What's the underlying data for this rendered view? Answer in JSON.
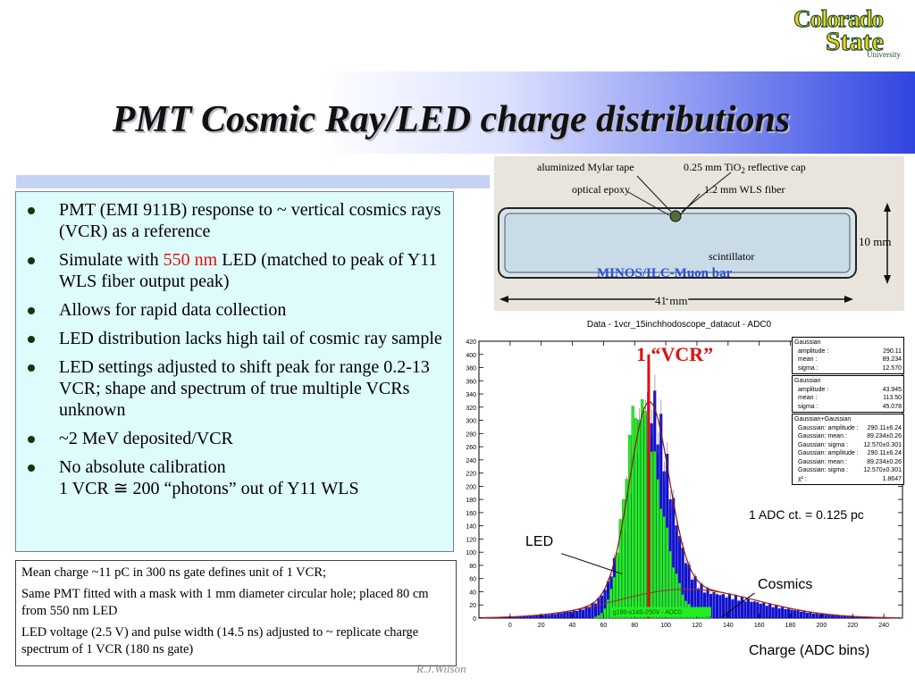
{
  "slide": {
    "title": "PMT Cosmic Ray/LED charge distributions",
    "logo": {
      "line1": "Colorado",
      "line2": "State",
      "line3": "University"
    },
    "footer": "R.J.Wilson"
  },
  "bullets": [
    {
      "text": "PMT (EMI 911B) response to ~ vertical cosmics rays (VCR) as a reference"
    },
    {
      "pre": "Simulate with ",
      "highlight": "550 nm",
      "post": " LED (matched to peak of Y11 WLS fiber output peak)"
    },
    {
      "text": "Allows for rapid data collection"
    },
    {
      "text": "LED distribution lacks high tail of cosmic ray sample"
    },
    {
      "text": "LED settings adjusted to shift peak for range 0.2-13 VCR; shape and spectrum of true multiple VCRs unknown"
    },
    {
      "text": "~2 MeV deposited/VCR"
    },
    {
      "line1": "No absolute calibration",
      "line2": "1 VCR ≅ 200 “photons” out of Y11 WLS"
    }
  ],
  "notes": [
    "Mean charge ~11 pC in 300 ns gate defines unit of 1 VCR;",
    "Same PMT fitted with a mask with 1 mm diameter circular hole; placed 80 cm from 550 nm LED",
    "LED voltage (2.5 V) and pulse width (14.5 ns) adjusted to ~ replicate charge spectrum of 1 VCR (180 ns gate)"
  ],
  "diagram": {
    "labels": {
      "mylar": "aluminized Mylar tape",
      "tio2": "0.25 mm TiO",
      "tio2_sub": "2",
      "cap": " reflective cap",
      "epoxy": "optical epoxy",
      "fiber": "1.2 mm WLS fiber",
      "scint": "scintillator",
      "height": "10 mm",
      "width": "41 mm",
      "caption": "MINOS/ILC-Muon bar"
    }
  },
  "plot": {
    "title": "Data - 1vcr_15inchhodoscope_datacut - ADC0",
    "vcr_label": "1 “VCR”",
    "adc_note": "1 ADC ct. = 0.125 pc",
    "led_label": "LED",
    "cosmics_label": "Cosmics",
    "xlabel": "Charge (ADC bins)",
    "green_hist_label": "g180-s14S-250V - ADC0",
    "stats": [
      {
        "title": "Gaussian",
        "rows": [
          [
            "amplitude :",
            "290.11"
          ],
          [
            "mean :",
            "89.234"
          ],
          [
            "sigma :",
            "12.570"
          ]
        ]
      },
      {
        "title": "Gaussian",
        "rows": [
          [
            "amplitude :",
            "43.945"
          ],
          [
            "mean :",
            "113.50"
          ],
          [
            "sigma :",
            "45.078"
          ]
        ]
      },
      {
        "title": "Gaussian+Gaussian",
        "rows": [
          [
            "Gaussian: amplitude :",
            "290.11±6.24"
          ],
          [
            "Gaussian: mean :",
            "89.234±0.26"
          ],
          [
            "Gaussian: sigma :",
            "12.570±0.301"
          ],
          [
            "Gaussian: amplitude :",
            "290.11±6.24"
          ],
          [
            "Gaussian: mean :",
            "89.234±0.26"
          ],
          [
            "Gaussian: sigma :",
            "12.570±0.301"
          ],
          [
            "χ² :",
            "1.8647"
          ]
        ]
      }
    ]
  },
  "chart_data": {
    "type": "bar",
    "title": "Data - 1vcr_15inchhodoscope_datacut - ADC0",
    "xlabel": "Charge (ADC bins)",
    "ylabel": "",
    "xlim": [
      -20,
      252
    ],
    "ylim": [
      0,
      420
    ],
    "xticks": [
      0,
      20,
      40,
      60,
      80,
      100,
      120,
      140,
      160,
      180,
      200,
      220,
      240
    ],
    "yticks": [
      0,
      20,
      40,
      60,
      80,
      100,
      120,
      140,
      160,
      180,
      200,
      220,
      240,
      260,
      280,
      300,
      320,
      340,
      360,
      380,
      400,
      420
    ],
    "series": [
      {
        "name": "LED",
        "color": "#22ee22",
        "x_center": 82,
        "sigma": 8.5,
        "peak": 320,
        "right_tail": 14
      },
      {
        "name": "Cosmics",
        "color": "#1010cc",
        "gauss1": {
          "amplitude": 290.11,
          "mean": 89.234,
          "sigma": 12.57
        },
        "gauss2": {
          "amplitude": 43.945,
          "mean": 113.5,
          "sigma": 45.078
        }
      },
      {
        "name": "Gaussian+Gaussian fit",
        "color": "#8b1a1a"
      }
    ],
    "vcr_marker_x": 89,
    "grid": false
  }
}
